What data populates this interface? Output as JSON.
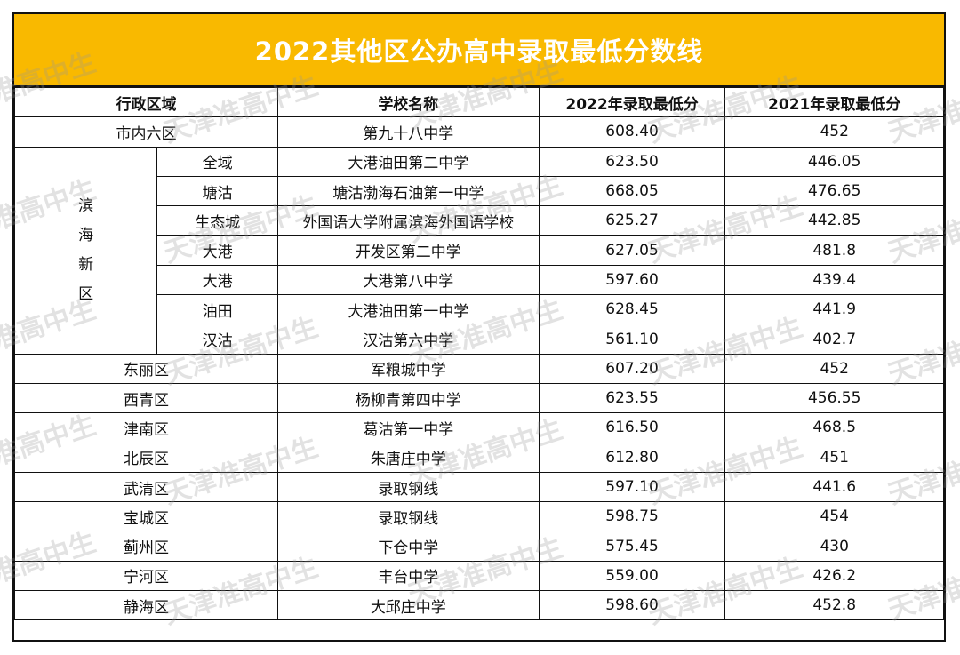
{
  "title": "2022其他区公办高中录取最低分数线",
  "headers": [
    "行政区域",
    "学校名称",
    "2022年录取最低分",
    "2021年录取最低分"
  ],
  "rows": [
    {
      "district": "市内六区",
      "school": "第九十八中学",
      "score2022": "608.40",
      "score2021": "452"
    },
    {
      "district": "东丽区",
      "school": "军粮城中学",
      "score2022": "607.20",
      "score2021": "452"
    },
    {
      "district": "西青区",
      "school": "杨柳青第四中学",
      "score2022": "623.55",
      "score2021": "456.55"
    },
    {
      "district": "津南区",
      "school": "葛沽第一中学",
      "score2022": "616.50",
      "score2021": "468.5"
    },
    {
      "district": "北辰区",
      "school": "朱唐庄中学",
      "score2022": "612.80",
      "score2021": "451"
    },
    {
      "district": "武清区",
      "school": "录取钢线",
      "score2022": "597.10",
      "score2021": "441.6"
    },
    {
      "district": "宝城区",
      "school": "录取钢线",
      "score2022": "598.75",
      "score2021": "454"
    },
    {
      "district": "蓟州区",
      "school": "下仓中学",
      "score2022": "575.45",
      "score2021": "430"
    },
    {
      "district": "宁河区",
      "school": "丰台中学",
      "score2022": "559.00",
      "score2021": "426.2"
    },
    {
      "district": "静海区",
      "school": "大邱庄中学",
      "score2022": "598.60",
      "score2021": "452.8"
    }
  ],
  "binhai": {
    "label_chars": [
      "滨",
      "海",
      "新",
      "区"
    ],
    "rows": [
      {
        "sub": "全域",
        "school": "大港油田第二中学",
        "score2022": "623.50",
        "score2021": "446.05"
      },
      {
        "sub": "塘沽",
        "school": "塘沽渤海石油第一中学",
        "score2022": "668.05",
        "score2021": "476.65"
      },
      {
        "sub": "生态城",
        "school": "外国语大学附属滨海外国语学校",
        "score2022": "625.27",
        "score2021": "442.85"
      },
      {
        "sub": "大港",
        "school": "开发区第二中学",
        "score2022": "627.05",
        "score2021": "481.8"
      },
      {
        "sub": "大港",
        "school": "大港第八中学",
        "score2022": "597.60",
        "score2021": "439.4"
      },
      {
        "sub": "油田",
        "school": "大港油田第一中学",
        "score2022": "628.45",
        "score2021": "441.9"
      },
      {
        "sub": "汉沽",
        "school": "汉沽第六中学",
        "score2022": "561.10",
        "score2021": "402.7"
      }
    ]
  },
  "watermark": "天津准高中生"
}
